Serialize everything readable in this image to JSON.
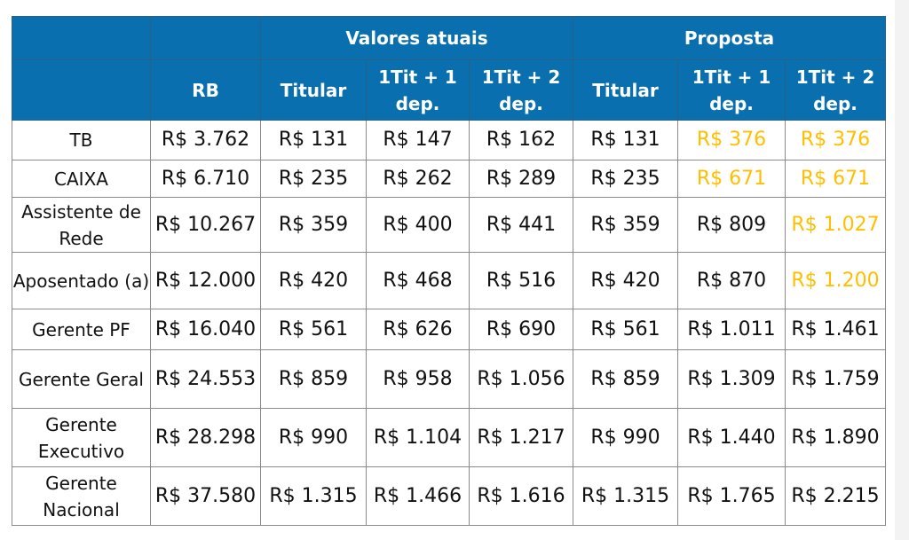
{
  "header": {
    "group_current": "Valores atuais",
    "group_proposal": "Proposta",
    "columns": [
      "RB",
      "Titular",
      "1Tit + 1 dep.",
      "1Tit + 2 dep.",
      "Titular",
      "1Tit + 1 dep.",
      "1Tit + 2 dep."
    ]
  },
  "colors": {
    "header_bg": "#0a6fae",
    "highlight": "#ffbf00"
  },
  "rows": [
    {
      "label": "TB",
      "values": [
        "R$ 3.762",
        "R$ 131",
        "R$ 147",
        "R$ 162",
        "R$ 131",
        "R$ 376",
        "R$ 376"
      ],
      "highlight": [
        false,
        false,
        false,
        false,
        false,
        true,
        true
      ]
    },
    {
      "label": "CAIXA",
      "values": [
        "R$ 6.710",
        "R$ 235",
        "R$ 262",
        "R$ 289",
        "R$ 235",
        "R$ 671",
        "R$ 671"
      ],
      "highlight": [
        false,
        false,
        false,
        false,
        false,
        true,
        true
      ]
    },
    {
      "label": "Assistente de Rede",
      "values": [
        "R$ 10.267",
        "R$ 359",
        "R$ 400",
        "R$ 441",
        "R$ 359",
        "R$ 809",
        "R$ 1.027"
      ],
      "highlight": [
        false,
        false,
        false,
        false,
        false,
        false,
        true
      ]
    },
    {
      "label": "Aposentado (a)",
      "values": [
        "R$ 12.000",
        "R$ 420",
        "R$ 468",
        "R$ 516",
        "R$ 420",
        "R$ 870",
        "R$ 1.200"
      ],
      "highlight": [
        false,
        false,
        false,
        false,
        false,
        false,
        true
      ]
    },
    {
      "label": "Gerente PF",
      "values": [
        "R$ 16.040",
        "R$ 561",
        "R$ 626",
        "R$ 690",
        "R$ 561",
        "R$ 1.011",
        "R$ 1.461"
      ],
      "highlight": [
        false,
        false,
        false,
        false,
        false,
        false,
        false
      ]
    },
    {
      "label": "Gerente Geral",
      "values": [
        "R$ 24.553",
        "R$ 859",
        "R$ 958",
        "R$ 1.056",
        "R$ 859",
        "R$ 1.309",
        "R$ 1.759"
      ],
      "highlight": [
        false,
        false,
        false,
        false,
        false,
        false,
        false
      ]
    },
    {
      "label": "Gerente Executivo",
      "values": [
        "R$ 28.298",
        "R$ 990",
        "R$ 1.104",
        "R$ 1.217",
        "R$ 990",
        "R$ 1.440",
        "R$ 1.890"
      ],
      "highlight": [
        false,
        false,
        false,
        false,
        false,
        false,
        false
      ]
    },
    {
      "label": "Gerente Nacional",
      "values": [
        "R$ 37.580",
        "R$ 1.315",
        "R$ 1.466",
        "R$ 1.616",
        "R$ 1.315",
        "R$ 1.765",
        "R$ 2.215"
      ],
      "highlight": [
        false,
        false,
        false,
        false,
        false,
        false,
        false
      ]
    }
  ]
}
